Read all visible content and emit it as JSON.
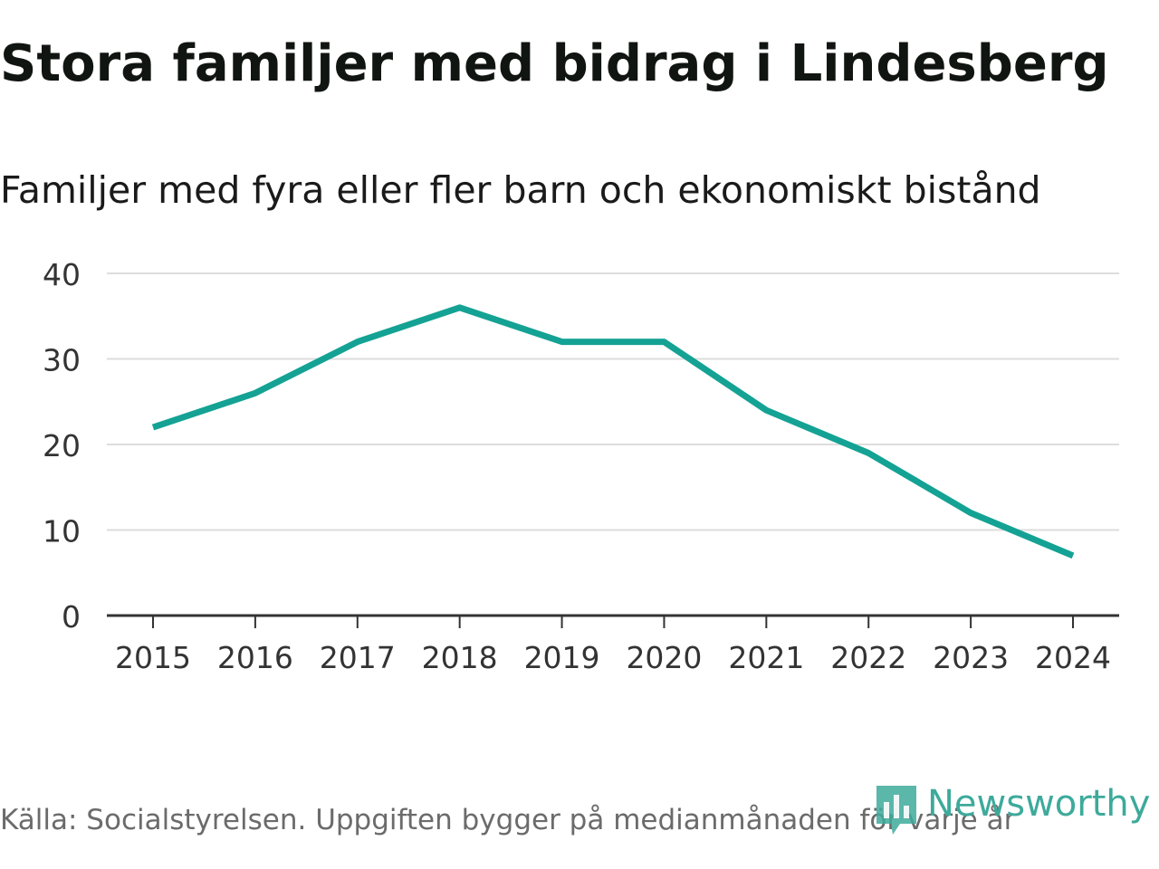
{
  "title": "Stora familjer med bidrag i Lindesberg",
  "subtitle": "Familjer med fyra eller fler barn och ekonomiskt bistånd",
  "source": "Källa: Socialstyrelsen. Uppgiften bygger på medianmånaden för varje år",
  "logo": {
    "text": "Newsworthy",
    "icon": "newsworthy-logo-icon",
    "color": "#3daa9b"
  },
  "colors": {
    "line": "#14a294",
    "grid": "#dddddd",
    "axis": "#333333",
    "tick_text": "#333333"
  },
  "chart_data": {
    "type": "line",
    "title": "Stora familjer med bidrag i Lindesberg",
    "subtitle": "Familjer med fyra eller fler barn och ekonomiskt bistånd",
    "xlabel": "",
    "ylabel": "",
    "x": [
      "2015",
      "2016",
      "2017",
      "2018",
      "2019",
      "2020",
      "2021",
      "2022",
      "2023",
      "2024"
    ],
    "series": [
      {
        "name": "Familjer med fyra eller fler barn och ekonomiskt bistånd",
        "values": [
          22,
          26,
          32,
          36,
          32,
          32,
          24,
          19,
          12,
          7
        ]
      }
    ],
    "ylim": [
      0,
      40
    ],
    "yticks": [
      0,
      10,
      20,
      30,
      40
    ],
    "grid": true,
    "legend": "none"
  }
}
